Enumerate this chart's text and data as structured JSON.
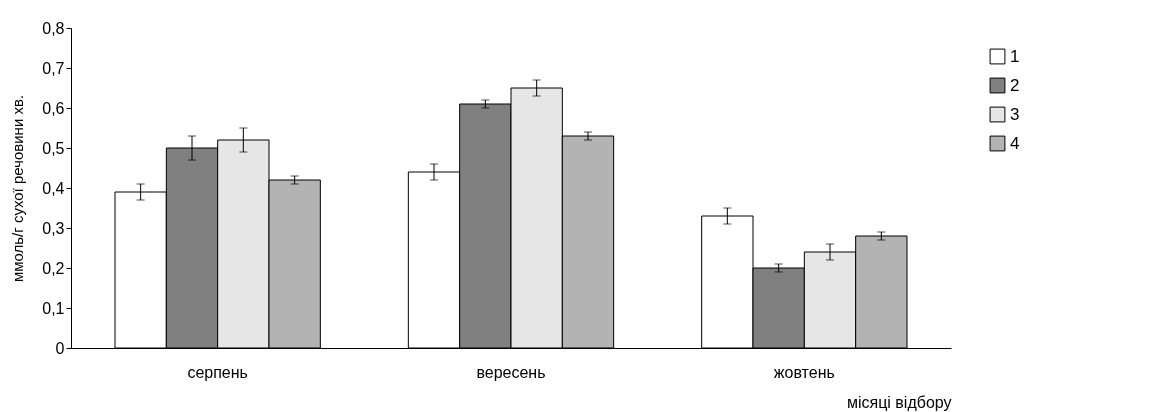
{
  "chart_data": {
    "type": "bar",
    "categories": [
      "серпень",
      "вересень",
      "жовтень"
    ],
    "series": [
      {
        "name": "1",
        "color": "#ffffff",
        "values": [
          0.39,
          0.44,
          0.33
        ],
        "errors": [
          0.02,
          0.02,
          0.02
        ]
      },
      {
        "name": "2",
        "color": "#808080",
        "values": [
          0.5,
          0.61,
          0.2
        ],
        "errors": [
          0.03,
          0.01,
          0.01
        ]
      },
      {
        "name": "3",
        "color": "#e6e6e6",
        "values": [
          0.52,
          0.65,
          0.24
        ],
        "errors": [
          0.03,
          0.02,
          0.02
        ]
      },
      {
        "name": "4",
        "color": "#b3b3b3",
        "values": [
          0.42,
          0.53,
          0.28
        ],
        "errors": [
          0.01,
          0.01,
          0.01
        ]
      }
    ],
    "xlabel": "місяці відбору",
    "ylabel": "ммоль/г сухої речовини хв.",
    "ylim": [
      0,
      0.8
    ],
    "yticks": [
      0,
      {
        "value": 0.1,
        "label": "0,1"
      },
      {
        "value": 0.2,
        "label": "0,2"
      },
      {
        "value": 0.3,
        "label": "0,3"
      },
      {
        "value": 0.4,
        "label": "0,4"
      },
      {
        "value": 0.5,
        "label": "0,5"
      },
      {
        "value": 0.6,
        "label": "0,6"
      },
      {
        "value": 0.7,
        "label": "0,7"
      },
      {
        "value": 0.8,
        "label": "0,8"
      }
    ],
    "legend": "right",
    "grid": false
  }
}
